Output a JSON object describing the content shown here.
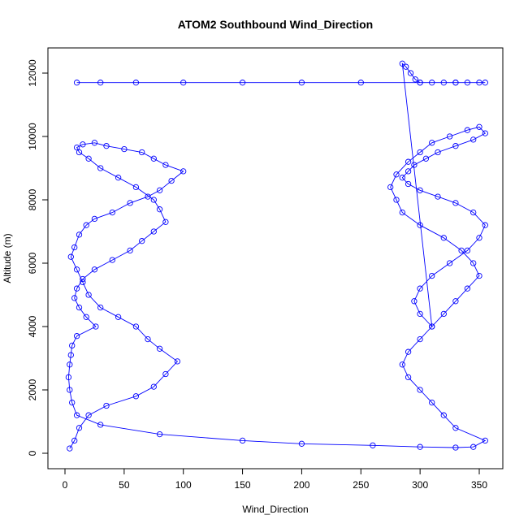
{
  "chart_data": {
    "type": "line",
    "title": "ATOM2 Southbound Wind_Direction",
    "xlabel": "Wind_Direction",
    "ylabel": "Altitude (m)",
    "xlim": [
      0,
      360
    ],
    "ylim": [
      0,
      12200
    ],
    "x_ticks": [
      0,
      50,
      100,
      150,
      200,
      250,
      300,
      350
    ],
    "y_ticks": [
      0,
      2000,
      4000,
      6000,
      8000,
      10000,
      12000
    ],
    "grid": false,
    "legend": "none",
    "series": [
      {
        "style": "points-and-lines",
        "marker": "open-circle",
        "color": "#0000ff",
        "x": [
          4,
          8,
          12,
          20,
          35,
          60,
          75,
          85,
          95,
          80,
          70,
          60,
          45,
          30,
          20,
          15,
          10,
          5,
          8,
          12,
          18,
          25,
          40,
          55,
          70,
          80,
          90,
          100,
          85,
          75,
          65,
          50,
          35,
          25,
          15,
          10,
          12,
          20,
          30,
          45,
          60,
          75,
          80,
          85,
          75,
          65,
          55,
          40,
          25,
          15,
          10,
          8,
          12,
          18,
          26,
          10,
          6,
          5,
          4,
          3,
          4,
          6,
          10,
          30,
          80,
          150,
          200,
          260,
          300,
          330,
          345,
          355,
          330,
          320,
          310,
          300,
          290,
          285,
          290,
          300,
          310,
          320,
          330,
          340,
          350,
          345,
          335,
          320,
          300,
          285,
          280,
          275,
          280,
          290,
          300,
          310,
          325,
          340,
          350,
          355,
          345,
          330,
          315,
          305,
          295,
          290,
          285,
          290,
          300,
          315,
          330,
          345,
          355,
          350,
          340,
          325,
          310,
          300,
          295,
          300,
          310,
          285,
          288,
          292,
          296,
          300,
          310,
          320,
          330,
          340,
          355,
          350,
          330,
          300,
          250,
          200,
          150,
          100,
          60,
          30,
          10
        ],
        "y": [
          150,
          400,
          800,
          1200,
          1500,
          1800,
          2100,
          2500,
          2900,
          3300,
          3600,
          4000,
          4300,
          4600,
          5000,
          5400,
          5800,
          6200,
          6500,
          6900,
          7200,
          7400,
          7600,
          7900,
          8100,
          8300,
          8600,
          8900,
          9100,
          9300,
          9500,
          9600,
          9700,
          9800,
          9750,
          9650,
          9500,
          9300,
          9000,
          8700,
          8400,
          8000,
          7700,
          7300,
          7000,
          6700,
          6400,
          6100,
          5800,
          5500,
          5200,
          4900,
          4600,
          4300,
          4000,
          3700,
          3400,
          3100,
          2800,
          2400,
          2000,
          1600,
          1200,
          900,
          600,
          400,
          300,
          250,
          200,
          180,
          200,
          400,
          800,
          1200,
          1600,
          2000,
          2400,
          2800,
          3200,
          3600,
          4000,
          4400,
          4800,
          5200,
          5600,
          6000,
          6400,
          6800,
          7200,
          7600,
          8000,
          8400,
          8800,
          9200,
          9500,
          9800,
          10000,
          10200,
          10300,
          10100,
          9900,
          9700,
          9500,
          9300,
          9100,
          8900,
          8700,
          8500,
          8300,
          8100,
          7900,
          7600,
          7200,
          6800,
          6400,
          6000,
          5600,
          5200,
          4800,
          4400,
          4000,
          12300,
          12200,
          12000,
          11800,
          11700,
          11700,
          11700,
          11700,
          11700,
          11700,
          11700,
          11700,
          11700,
          11700,
          11700,
          11700,
          11700,
          11700,
          11700,
          11700
        ]
      }
    ]
  }
}
